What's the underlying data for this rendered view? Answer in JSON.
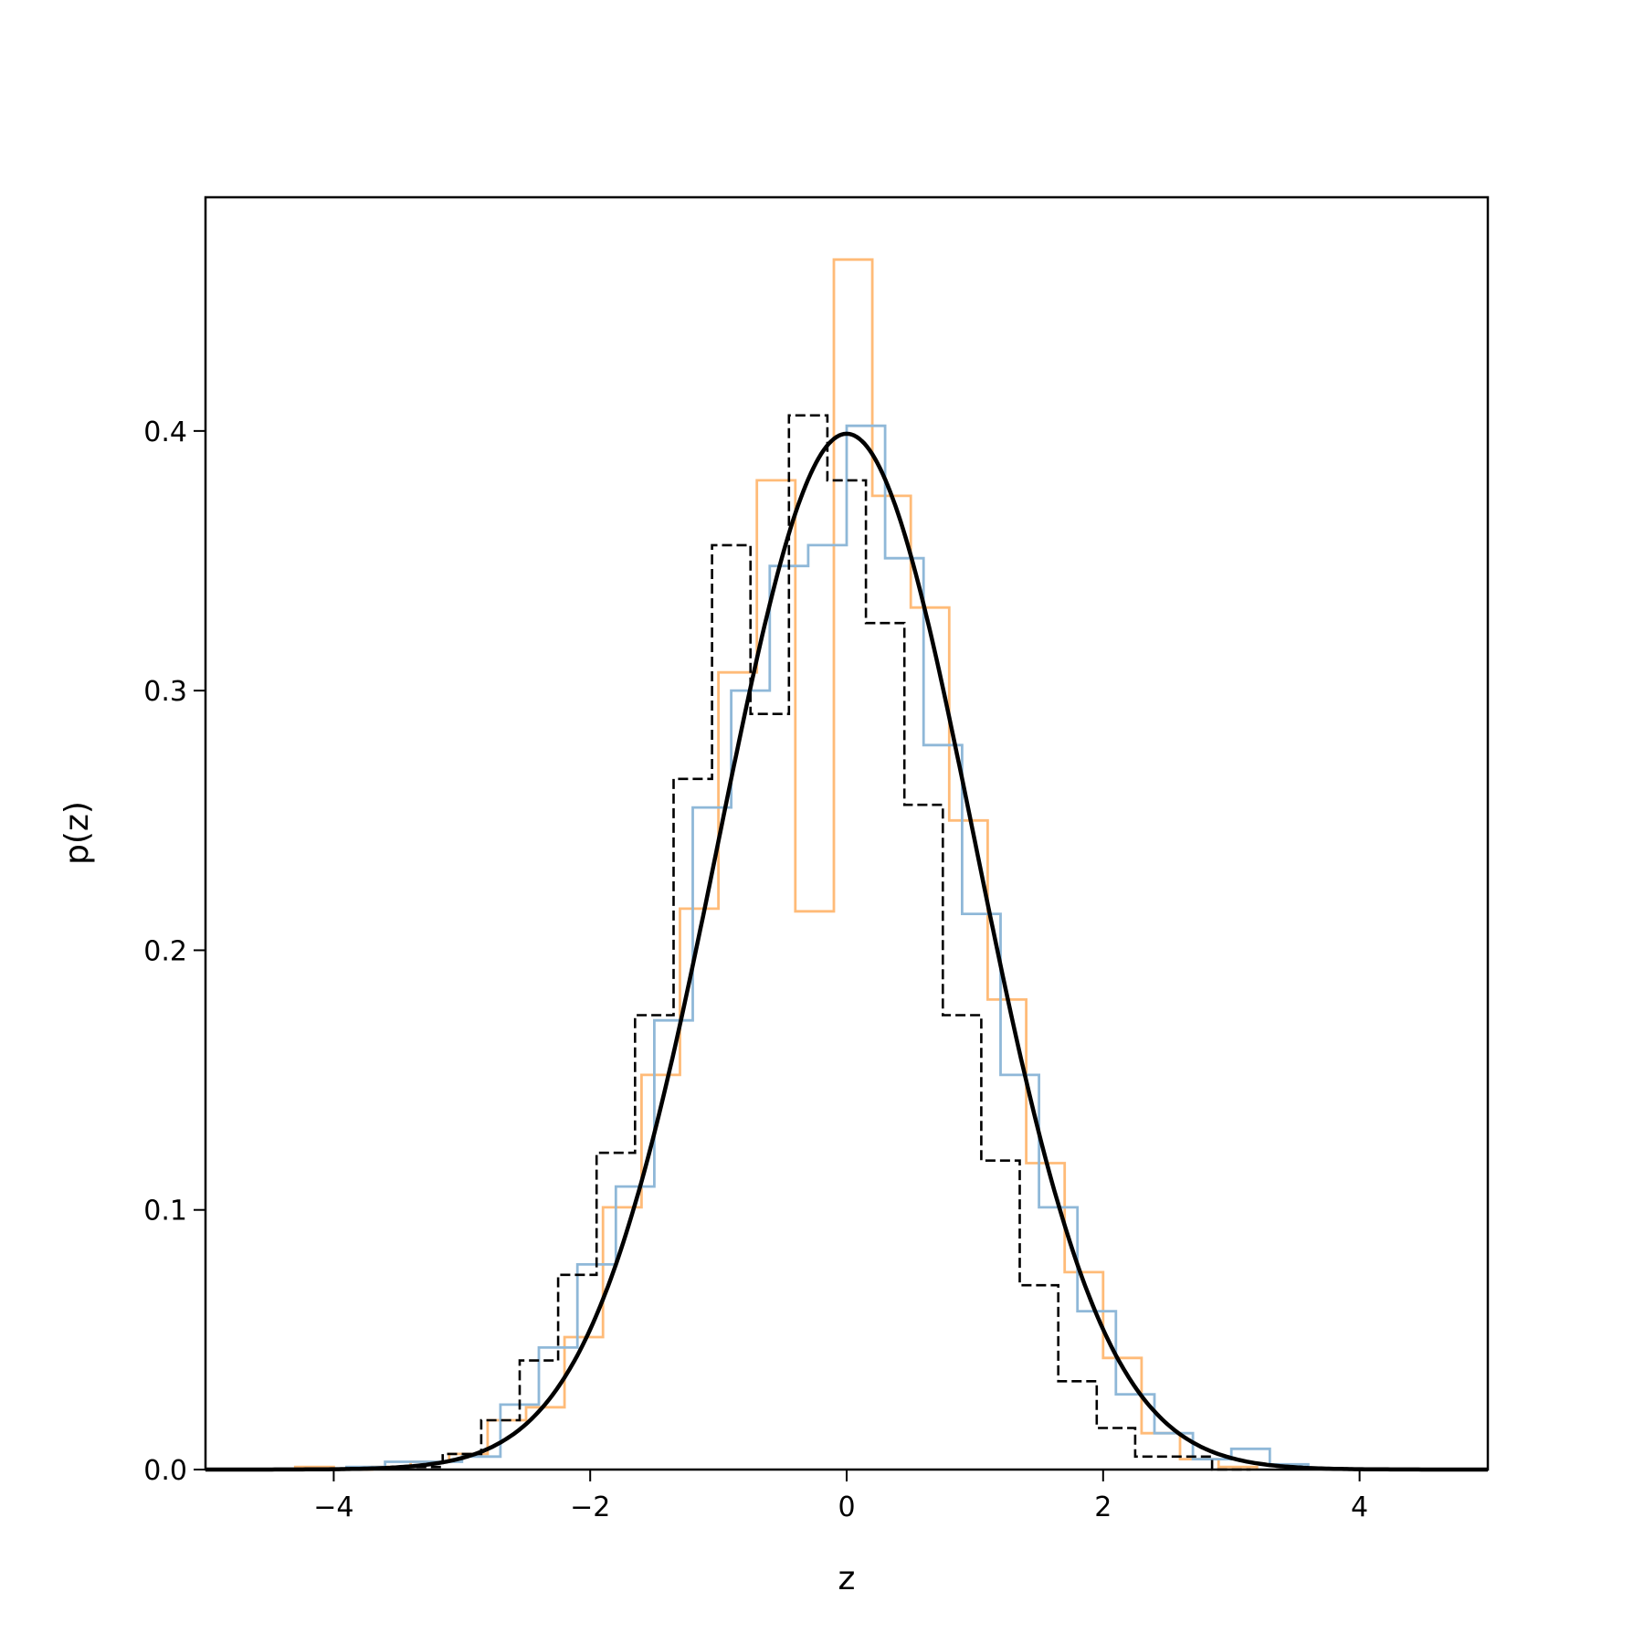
{
  "chart_data": {
    "type": "step-histogram",
    "xlabel": "z",
    "ylabel": "p(z)",
    "xlim": [
      -5,
      5
    ],
    "ylim": [
      0,
      0.49
    ],
    "x_ticks": [
      -4,
      -2,
      0,
      2,
      4
    ],
    "x_tick_labels": [
      "−4",
      "−2",
      "0",
      "2",
      "4"
    ],
    "y_ticks": [
      0.0,
      0.1,
      0.2,
      0.3,
      0.4
    ],
    "y_tick_labels": [
      "0.0",
      "0.1",
      "0.2",
      "0.3",
      "0.4"
    ],
    "grid": false,
    "legend": "none",
    "series": [
      {
        "color": "#ffbb78",
        "style": "solid",
        "edges": [
          -4.3,
          -4.0,
          -3.7,
          -3.4,
          -3.1,
          -2.8,
          -2.5,
          -2.2,
          -1.9,
          -1.6,
          -1.3,
          -1.0,
          -0.7,
          -0.4,
          -0.1,
          0.2,
          0.5,
          0.8,
          1.1,
          1.4,
          1.7,
          2.0,
          2.3,
          2.6,
          2.9,
          3.2
        ],
        "heights": [
          0.001,
          0.0,
          0.001,
          0.003,
          0.006,
          0.019,
          0.024,
          0.051,
          0.101,
          0.152,
          0.216,
          0.307,
          0.381,
          0.215,
          0.466,
          0.375,
          0.332,
          0.25,
          0.181,
          0.118,
          0.076,
          0.043,
          0.014,
          0.004,
          0.001
        ]
      },
      {
        "color": "#8fb8d8",
        "style": "solid",
        "edges": [
          -3.9,
          -3.6,
          -3.3,
          -3.0,
          -2.7,
          -2.4,
          -2.1,
          -1.8,
          -1.5,
          -1.2,
          -0.9,
          -0.6,
          -0.3,
          0.0,
          0.3,
          0.6,
          0.9,
          1.2,
          1.5,
          1.8,
          2.1,
          2.4,
          2.7,
          3.0,
          3.3,
          3.6
        ],
        "heights": [
          0.001,
          0.003,
          0.003,
          0.005,
          0.025,
          0.047,
          0.079,
          0.109,
          0.173,
          0.255,
          0.3,
          0.348,
          0.356,
          0.402,
          0.351,
          0.279,
          0.214,
          0.152,
          0.101,
          0.061,
          0.029,
          0.014,
          0.004,
          0.008,
          0.002
        ]
      },
      {
        "color": "#000000",
        "style": "dashed",
        "edges": [
          -3.45,
          -3.15,
          -2.85,
          -2.55,
          -2.25,
          -1.95,
          -1.65,
          -1.35,
          -1.05,
          -0.75,
          -0.45,
          -0.15,
          0.15,
          0.45,
          0.75,
          1.05,
          1.35,
          1.65,
          1.95,
          2.25,
          2.55,
          2.85,
          3.15
        ],
        "heights": [
          0.001,
          0.006,
          0.019,
          0.042,
          0.075,
          0.122,
          0.175,
          0.266,
          0.356,
          0.291,
          0.406,
          0.381,
          0.326,
          0.256,
          0.175,
          0.119,
          0.071,
          0.034,
          0.016,
          0.005,
          0.005,
          0.0
        ]
      }
    ],
    "curve": {
      "label": "",
      "distribution": "standard normal",
      "mu": 0,
      "sigma": 1,
      "peak": 0.399,
      "color": "#000000"
    }
  }
}
